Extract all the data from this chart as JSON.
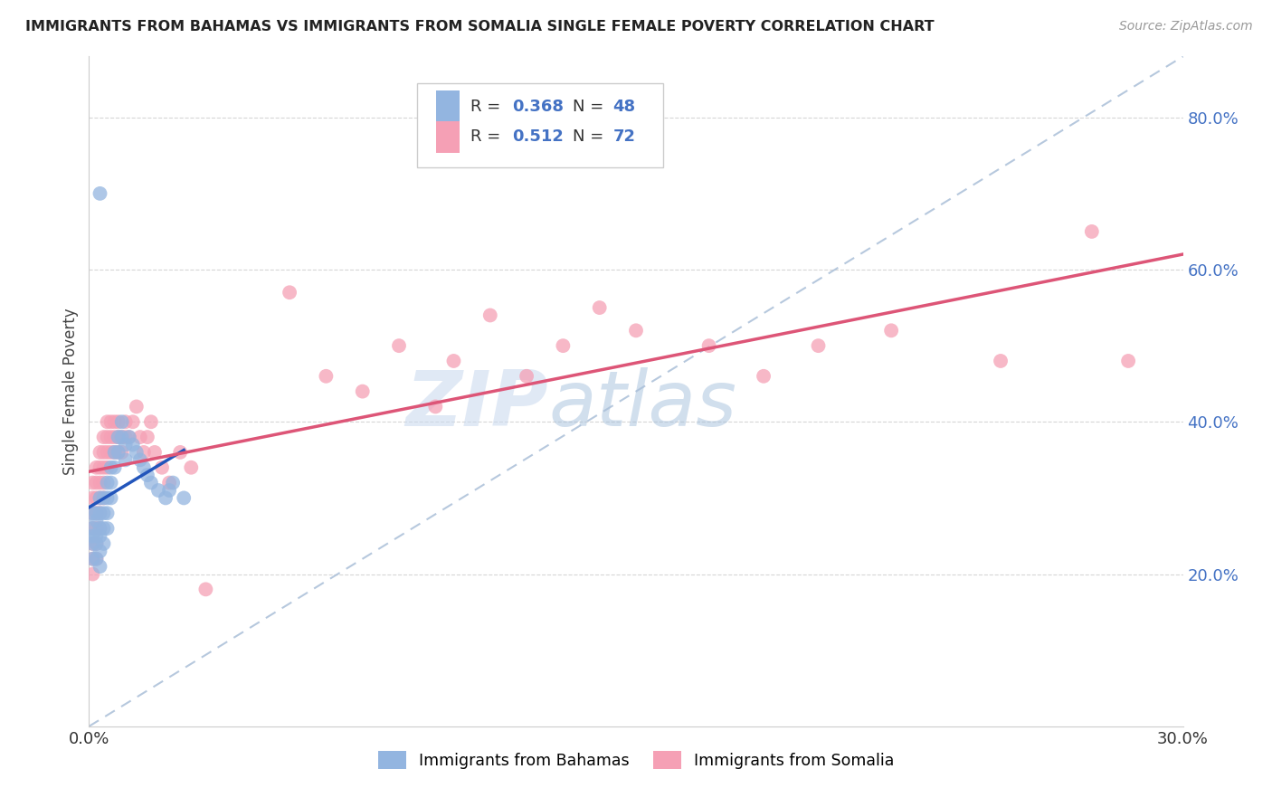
{
  "title": "IMMIGRANTS FROM BAHAMAS VS IMMIGRANTS FROM SOMALIA SINGLE FEMALE POVERTY CORRELATION CHART",
  "source": "Source: ZipAtlas.com",
  "ylabel": "Single Female Poverty",
  "xlim": [
    0.0,
    0.3
  ],
  "ylim": [
    0.0,
    0.88
  ],
  "xticks": [
    0.0,
    0.05,
    0.1,
    0.15,
    0.2,
    0.25,
    0.3
  ],
  "xticklabels": [
    "0.0%",
    "",
    "",
    "",
    "",
    "",
    "30.0%"
  ],
  "yticks": [
    0.2,
    0.4,
    0.6,
    0.8
  ],
  "yticklabels": [
    "20.0%",
    "40.0%",
    "60.0%",
    "80.0%"
  ],
  "legend_label1": "Immigrants from Bahamas",
  "legend_label2": "Immigrants from Somalia",
  "watermark_zip": "ZIP",
  "watermark_atlas": "atlas",
  "bahamas_color": "#93b5e0",
  "somalia_color": "#f5a0b5",
  "bahamas_trend_color": "#2255bb",
  "somalia_trend_color": "#dd5577",
  "diagonal_color": "#aabfd8",
  "bahamas_x": [
    0.001,
    0.001,
    0.001,
    0.001,
    0.001,
    0.002,
    0.002,
    0.002,
    0.002,
    0.002,
    0.003,
    0.003,
    0.003,
    0.003,
    0.003,
    0.003,
    0.004,
    0.004,
    0.004,
    0.004,
    0.005,
    0.005,
    0.005,
    0.005,
    0.006,
    0.006,
    0.006,
    0.007,
    0.007,
    0.008,
    0.008,
    0.009,
    0.009,
    0.01,
    0.01,
    0.011,
    0.012,
    0.013,
    0.014,
    0.015,
    0.016,
    0.017,
    0.019,
    0.021,
    0.022,
    0.023,
    0.026,
    0.003
  ],
  "bahamas_y": [
    0.25,
    0.28,
    0.24,
    0.26,
    0.22,
    0.27,
    0.25,
    0.28,
    0.24,
    0.22,
    0.26,
    0.3,
    0.28,
    0.25,
    0.23,
    0.21,
    0.3,
    0.28,
    0.26,
    0.24,
    0.32,
    0.3,
    0.28,
    0.26,
    0.34,
    0.32,
    0.3,
    0.36,
    0.34,
    0.38,
    0.36,
    0.4,
    0.38,
    0.37,
    0.35,
    0.38,
    0.37,
    0.36,
    0.35,
    0.34,
    0.33,
    0.32,
    0.31,
    0.3,
    0.31,
    0.32,
    0.3,
    0.7
  ],
  "somalia_x": [
    0.001,
    0.001,
    0.001,
    0.001,
    0.001,
    0.001,
    0.001,
    0.002,
    0.002,
    0.002,
    0.002,
    0.002,
    0.002,
    0.002,
    0.003,
    0.003,
    0.003,
    0.003,
    0.003,
    0.003,
    0.004,
    0.004,
    0.004,
    0.004,
    0.004,
    0.005,
    0.005,
    0.005,
    0.005,
    0.006,
    0.006,
    0.006,
    0.007,
    0.007,
    0.007,
    0.008,
    0.008,
    0.008,
    0.009,
    0.009,
    0.01,
    0.01,
    0.011,
    0.012,
    0.013,
    0.014,
    0.015,
    0.016,
    0.017,
    0.018,
    0.02,
    0.022,
    0.025,
    0.028,
    0.032,
    0.055,
    0.065,
    0.075,
    0.085,
    0.095,
    0.1,
    0.11,
    0.12,
    0.13,
    0.14,
    0.15,
    0.17,
    0.185,
    0.2,
    0.22,
    0.25,
    0.275,
    0.285
  ],
  "somalia_y": [
    0.24,
    0.28,
    0.3,
    0.32,
    0.22,
    0.26,
    0.2,
    0.28,
    0.32,
    0.34,
    0.3,
    0.26,
    0.24,
    0.22,
    0.34,
    0.36,
    0.32,
    0.3,
    0.28,
    0.26,
    0.36,
    0.38,
    0.34,
    0.32,
    0.3,
    0.38,
    0.4,
    0.36,
    0.34,
    0.4,
    0.38,
    0.36,
    0.4,
    0.38,
    0.36,
    0.4,
    0.38,
    0.36,
    0.38,
    0.36,
    0.4,
    0.38,
    0.38,
    0.4,
    0.42,
    0.38,
    0.36,
    0.38,
    0.4,
    0.36,
    0.34,
    0.32,
    0.36,
    0.34,
    0.18,
    0.57,
    0.46,
    0.44,
    0.5,
    0.42,
    0.48,
    0.54,
    0.46,
    0.5,
    0.55,
    0.52,
    0.5,
    0.46,
    0.5,
    0.52,
    0.48,
    0.65,
    0.48
  ],
  "bahamas_trend": [
    0.0,
    0.02,
    0.262,
    0.398
  ],
  "somalia_trend": [
    0.0,
    0.3,
    0.262,
    0.645
  ]
}
